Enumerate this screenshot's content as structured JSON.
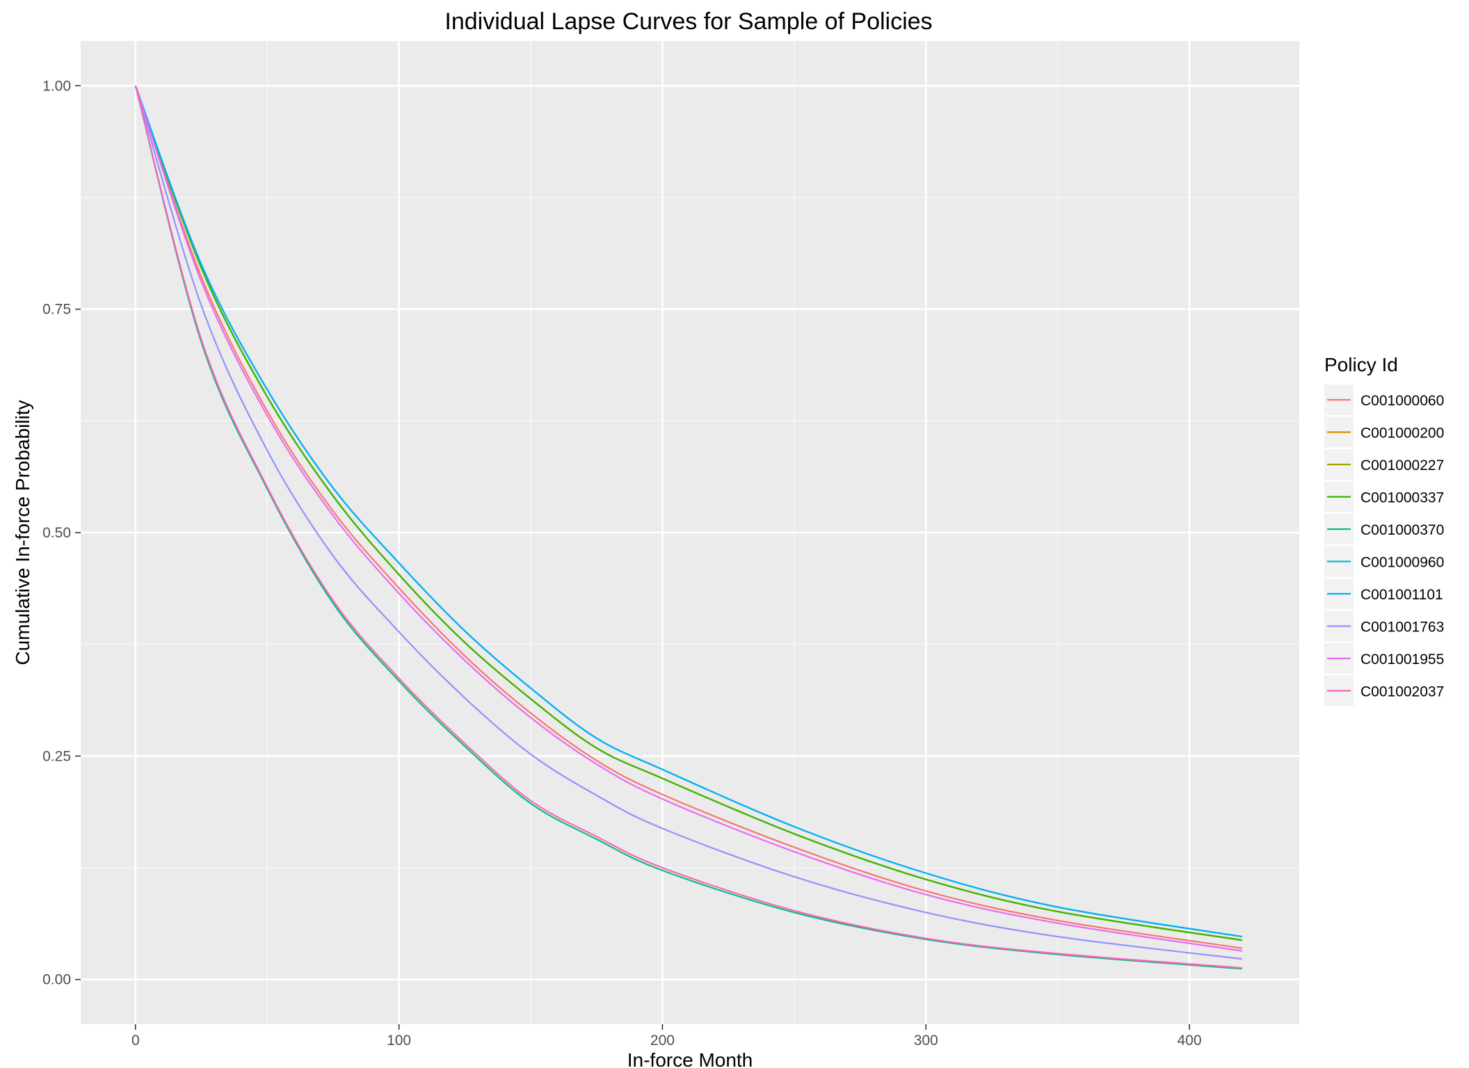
{
  "chart_data": {
    "type": "line",
    "title": "Individual Lapse Curves for Sample of Policies",
    "xlabel": "In-force Month",
    "ylabel": "Cumulative In-force Probability",
    "xlim": [
      -20.8,
      441.7
    ],
    "ylim": [
      -0.05,
      1.05
    ],
    "x_ticks": [
      0,
      100,
      200,
      300,
      400
    ],
    "x_tick_labels": [
      "0",
      "100",
      "200",
      "300",
      "400"
    ],
    "y_ticks": [
      0,
      0.25,
      0.5,
      0.75,
      1.0
    ],
    "y_tick_labels": [
      "0.00",
      "0.25",
      "0.50",
      "0.75",
      "1.00"
    ],
    "x_minor_ticks": [
      50,
      150,
      250,
      350
    ],
    "y_minor_ticks": [
      0.125,
      0.375,
      0.625,
      0.875
    ],
    "grid": true,
    "legend_position": "right",
    "legend_title": "Policy Id",
    "x": [
      0,
      25,
      50,
      75,
      100,
      125,
      150,
      175,
      200,
      250,
      300,
      350,
      420
    ],
    "series": [
      {
        "name": "C001000060",
        "color": "#F8766D",
        "values": [
          1.0,
          0.786,
          0.636,
          0.524,
          0.438,
          0.362,
          0.298,
          0.245,
          0.207,
          0.148,
          0.099,
          0.066,
          0.035
        ]
      },
      {
        "name": "C001000200",
        "color": "#D89000",
        "values": [
          1.0,
          0.796,
          0.652,
          0.541,
          0.453,
          0.377,
          0.314,
          0.259,
          0.225,
          0.163,
          0.112,
          0.076,
          0.044
        ]
      },
      {
        "name": "C001000227",
        "color": "#A3A500",
        "values": [
          1.0,
          0.796,
          0.652,
          0.541,
          0.453,
          0.377,
          0.314,
          0.259,
          0.225,
          0.163,
          0.112,
          0.076,
          0.044
        ]
      },
      {
        "name": "C001000337",
        "color": "#39B600",
        "values": [
          1.0,
          0.796,
          0.652,
          0.541,
          0.453,
          0.377,
          0.314,
          0.259,
          0.225,
          0.163,
          0.112,
          0.076,
          0.044
        ]
      },
      {
        "name": "C001000370",
        "color": "#00BF7D",
        "values": [
          1.0,
          0.713,
          0.549,
          0.421,
          0.334,
          0.261,
          0.197,
          0.157,
          0.122,
          0.075,
          0.045,
          0.028,
          0.012
        ]
      },
      {
        "name": "C001000960",
        "color": "#00BFC4",
        "values": [
          1.0,
          0.8,
          0.66,
          0.55,
          0.466,
          0.39,
          0.326,
          0.27,
          0.235,
          0.171,
          0.119,
          0.081,
          0.048
        ]
      },
      {
        "name": "C001001101",
        "color": "#00B0F6",
        "values": [
          1.0,
          0.8,
          0.66,
          0.55,
          0.466,
          0.39,
          0.326,
          0.27,
          0.235,
          0.171,
          0.119,
          0.081,
          0.048
        ]
      },
      {
        "name": "C001001763",
        "color": "#9590FF",
        "values": [
          1.0,
          0.754,
          0.592,
          0.474,
          0.389,
          0.315,
          0.252,
          0.206,
          0.169,
          0.115,
          0.075,
          0.048,
          0.023
        ]
      },
      {
        "name": "C001001955",
        "color": "#E76BF3",
        "values": [
          1.0,
          0.781,
          0.631,
          0.519,
          0.432,
          0.357,
          0.293,
          0.241,
          0.202,
          0.143,
          0.095,
          0.063,
          0.032
        ]
      },
      {
        "name": "C001002037",
        "color": "#FF62BC",
        "values": [
          1.0,
          0.716,
          0.551,
          0.424,
          0.337,
          0.264,
          0.2,
          0.16,
          0.125,
          0.077,
          0.046,
          0.029,
          0.013
        ]
      }
    ]
  }
}
